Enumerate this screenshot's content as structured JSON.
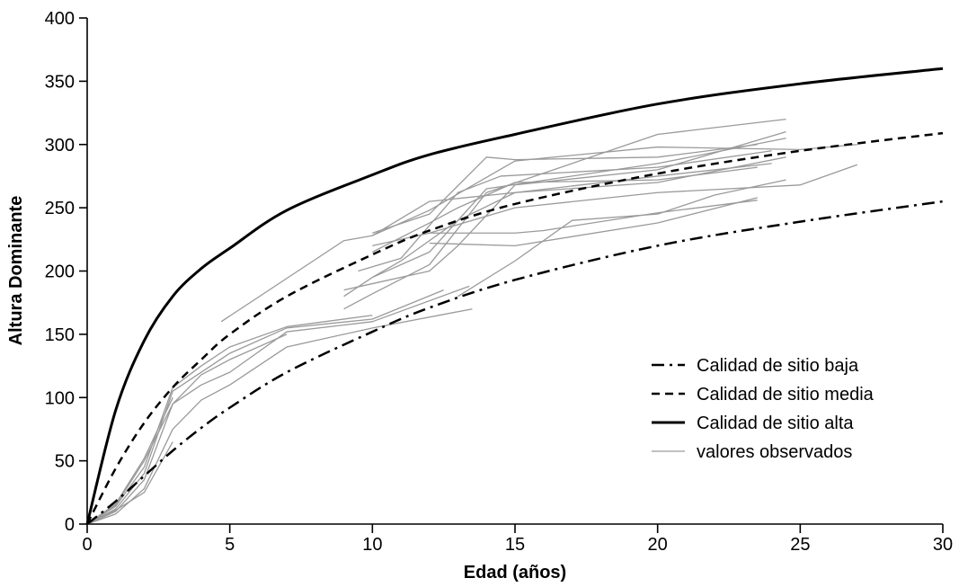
{
  "chart_data": {
    "type": "line",
    "title": "",
    "xlabel": "Edad (años)",
    "ylabel": "Altura Dominante",
    "xlim": [
      0,
      30
    ],
    "ylim": [
      0,
      400
    ],
    "xticks": [
      0,
      5,
      10,
      15,
      20,
      25,
      30
    ],
    "yticks": [
      0,
      50,
      100,
      150,
      200,
      250,
      300,
      350,
      400
    ],
    "grid": false,
    "legend_position": "right",
    "series": [
      {
        "name": "Calidad de sitio baja",
        "style": "dash-dot",
        "color": "#000000",
        "x": [
          0,
          1,
          2,
          3,
          4,
          5,
          7,
          10,
          12,
          15,
          20,
          25,
          30
        ],
        "y": [
          0,
          18,
          38,
          58,
          76,
          92,
          120,
          152,
          171,
          193,
          220,
          239,
          255
        ]
      },
      {
        "name": "Calidad de sitio media",
        "style": "dashed",
        "color": "#000000",
        "x": [
          0,
          1,
          2,
          3,
          4,
          5,
          7,
          10,
          12,
          15,
          20,
          25,
          30
        ],
        "y": [
          0,
          44,
          80,
          108,
          130,
          150,
          180,
          213,
          232,
          253,
          277,
          295,
          309
        ]
      },
      {
        "name": "Calidad de sitio alta",
        "style": "solid",
        "color": "#000000",
        "x": [
          0,
          1,
          2,
          3,
          4,
          5,
          7,
          10,
          12,
          15,
          20,
          25,
          30
        ],
        "y": [
          0,
          90,
          145,
          180,
          202,
          218,
          248,
          276,
          292,
          308,
          332,
          348,
          360
        ]
      },
      {
        "name": "valores observados",
        "style": "thin",
        "color": "#9a9a9a",
        "lines": [
          {
            "x": [
              0,
              1,
              2,
              3,
              4,
              5,
              7,
              10,
              13.5
            ],
            "y": [
              0,
              8,
              28,
              75,
              98,
              110,
              140,
              155,
              170
            ]
          },
          {
            "x": [
              0,
              1,
              2,
              3,
              4,
              5,
              7,
              10,
              13.4
            ],
            "y": [
              0,
              10,
              35,
              95,
              110,
              120,
              152,
              160,
              188
            ]
          },
          {
            "x": [
              0,
              1,
              2,
              3,
              4,
              5,
              7,
              10,
              12.5
            ],
            "y": [
              0,
              12,
              40,
              105,
              120,
              135,
              155,
              162,
              185
            ]
          },
          {
            "x": [
              0,
              1,
              2,
              3,
              4,
              5,
              7,
              10
            ],
            "y": [
              0,
              14,
              45,
              108,
              125,
              140,
              156,
              165
            ]
          },
          {
            "x": [
              0,
              1,
              2,
              3,
              4,
              5,
              7
            ],
            "y": [
              0,
              15,
              50,
              95,
              118,
              130,
              150
            ]
          },
          {
            "x": [
              0,
              1,
              2,
              3
            ],
            "y": [
              0,
              11,
              25,
              65
            ]
          },
          {
            "x": [
              0,
              1,
              2,
              3
            ],
            "y": [
              0,
              16,
              52,
              100
            ]
          },
          {
            "x": [
              4.7,
              9,
              10,
              12,
              15,
              20,
              25,
              27
            ],
            "y": [
              160,
              224,
              228,
              248,
              287,
              298,
              296,
              300
            ]
          },
          {
            "x": [
              9,
              10,
              12,
              14,
              20,
              24.5
            ],
            "y": [
              170,
              182,
              205,
              262,
              308,
              320
            ]
          },
          {
            "x": [
              9,
              10,
              12,
              13,
              15,
              20,
              24.5
            ],
            "y": [
              185,
              190,
              200,
              220,
              268,
              280,
              310
            ]
          },
          {
            "x": [
              9,
              10,
              12,
              14,
              20,
              24.5
            ],
            "y": [
              180,
              195,
              215,
              265,
              285,
              305
            ]
          },
          {
            "x": [
              10,
              12,
              14,
              15,
              20,
              23.5
            ],
            "y": [
              230,
              245,
              290,
              288,
              290,
              300
            ]
          },
          {
            "x": [
              10,
              12,
              13,
              15,
              20,
              23.5
            ],
            "y": [
              215,
              238,
              250,
              270,
              272,
              282
            ]
          },
          {
            "x": [
              10,
              12,
              15,
              20,
              24.5
            ],
            "y": [
              228,
              255,
              262,
              270,
              290
            ]
          },
          {
            "x": [
              9.5,
              11,
              13,
              14.5,
              20,
              24
            ],
            "y": [
              200,
              210,
              262,
              275,
              282,
              295
            ]
          },
          {
            "x": [
              10,
              11,
              13,
              15,
              20,
              24
            ],
            "y": [
              195,
              208,
              240,
              262,
              275,
              285
            ]
          },
          {
            "x": [
              10,
              12,
              15,
              20,
              25,
              27
            ],
            "y": [
              220,
              230,
              250,
              262,
              268,
              284
            ]
          },
          {
            "x": [
              12,
              15,
              20,
              23.5
            ],
            "y": [
              222,
              220,
              238,
              258
            ]
          },
          {
            "x": [
              12,
              15,
              16,
              20,
              23.5
            ],
            "y": [
              230,
              230,
              232,
              246,
              256
            ]
          },
          {
            "x": [
              13,
              15,
              17,
              20,
              22,
              24.5
            ],
            "y": [
              180,
              208,
              240,
              245,
              260,
              272
            ]
          }
        ]
      }
    ]
  }
}
